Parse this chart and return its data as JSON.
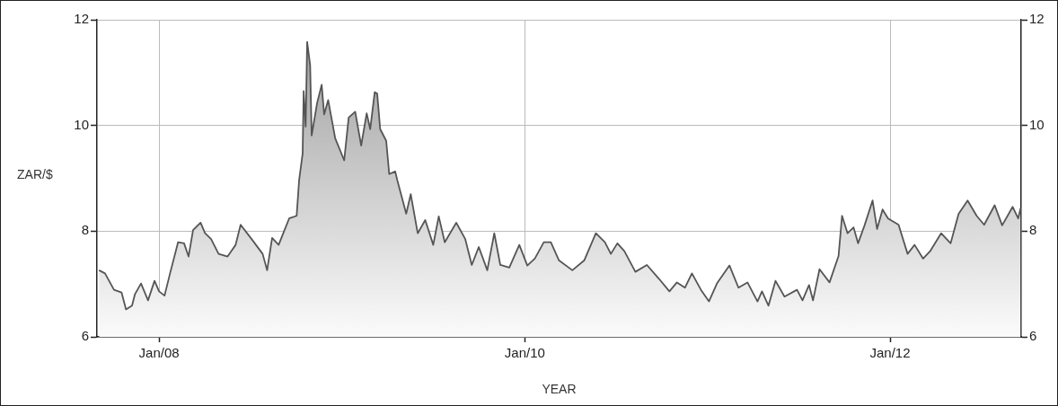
{
  "chart_data": {
    "type": "area",
    "ylabel": "ZAR/$",
    "xlabel": "YEAR",
    "xlim": [
      "2007-08-30",
      "2012-09-19"
    ],
    "xticks": [
      {
        "value": "2008-01-01",
        "label": "Jan/08"
      },
      {
        "value": "2010-01-01",
        "label": "Jan/10"
      },
      {
        "value": "2012-01-01",
        "label": "Jan/12"
      }
    ],
    "ylim": [
      6,
      12
    ],
    "yticks": [
      6,
      8,
      10,
      12
    ],
    "y2lim": [
      6,
      12
    ],
    "y2ticks": [
      6,
      8,
      10,
      12
    ],
    "grid": true,
    "legend": false,
    "marker": "none",
    "line_style": "solid",
    "series": [
      {
        "color": "#555555",
        "x": [
          "2007-09-03",
          "2007-09-15",
          "2007-10-03",
          "2007-10-18",
          "2007-10-27",
          "2007-11-08",
          "2007-11-14",
          "2007-11-26",
          "2007-12-10",
          "2007-12-23",
          "2008-01-01",
          "2008-01-12",
          "2008-01-23",
          "2008-02-08",
          "2008-02-20",
          "2008-02-29",
          "2008-03-09",
          "2008-03-24",
          "2008-04-02",
          "2008-04-14",
          "2008-04-29",
          "2008-05-17",
          "2008-06-02",
          "2008-06-12",
          "2008-07-04",
          "2008-07-26",
          "2008-08-04",
          "2008-08-14",
          "2008-08-27",
          "2008-09-17",
          "2008-10-02",
          "2008-10-07",
          "2008-10-14",
          "2008-10-16",
          "2008-10-20",
          "2008-10-23",
          "2008-10-29",
          "2008-11-01",
          "2008-11-12",
          "2008-11-21",
          "2008-11-26",
          "2008-12-04",
          "2008-12-18",
          "2009-01-05",
          "2009-01-14",
          "2009-01-27",
          "2009-02-08",
          "2009-02-19",
          "2009-02-26",
          "2009-03-07",
          "2009-03-12",
          "2009-03-18",
          "2009-03-30",
          "2009-04-05",
          "2009-04-17",
          "2009-04-21",
          "2009-05-09",
          "2009-05-18",
          "2009-06-01",
          "2009-06-16",
          "2009-07-02",
          "2009-07-13",
          "2009-07-25",
          "2009-08-17",
          "2009-09-04",
          "2009-09-17",
          "2009-10-01",
          "2009-10-18",
          "2009-11-01",
          "2009-11-13",
          "2009-12-01",
          "2009-12-21",
          "2010-01-06",
          "2010-01-21",
          "2010-02-08",
          "2010-02-22",
          "2010-03-10",
          "2010-04-06",
          "2010-04-30",
          "2010-05-23",
          "2010-06-10",
          "2010-06-22",
          "2010-07-05",
          "2010-07-19",
          "2010-08-10",
          "2010-09-02",
          "2010-09-26",
          "2010-10-17",
          "2010-11-01",
          "2010-11-17",
          "2010-12-01",
          "2010-12-19",
          "2011-01-04",
          "2011-01-20",
          "2011-02-14",
          "2011-03-04",
          "2011-03-22",
          "2011-04-11",
          "2011-04-20",
          "2011-05-03",
          "2011-05-17",
          "2011-06-04",
          "2011-06-29",
          "2011-07-10",
          "2011-07-23",
          "2011-07-31",
          "2011-08-13",
          "2011-09-02",
          "2011-09-20",
          "2011-09-27",
          "2011-10-08",
          "2011-10-20",
          "2011-10-29",
          "2011-11-11",
          "2011-11-27",
          "2011-12-06",
          "2011-12-17",
          "2011-12-28",
          "2012-01-18",
          "2012-02-05",
          "2012-02-19",
          "2012-03-07",
          "2012-03-21",
          "2012-04-12",
          "2012-05-01",
          "2012-05-17",
          "2012-06-04",
          "2012-06-22",
          "2012-07-07",
          "2012-07-28",
          "2012-08-12",
          "2012-09-02",
          "2012-09-13",
          "2012-09-18"
        ],
        "values": [
          7.26,
          7.2,
          6.89,
          6.84,
          6.52,
          6.59,
          6.81,
          7.01,
          6.69,
          7.06,
          6.86,
          6.78,
          7.2,
          7.79,
          7.77,
          7.52,
          8.02,
          8.16,
          7.96,
          7.85,
          7.57,
          7.52,
          7.74,
          8.12,
          7.85,
          7.57,
          7.26,
          7.87,
          7.74,
          8.24,
          8.29,
          8.97,
          9.47,
          10.65,
          9.98,
          11.58,
          11.14,
          9.81,
          10.43,
          10.77,
          10.21,
          10.48,
          9.76,
          9.34,
          10.15,
          10.26,
          9.62,
          10.23,
          9.93,
          10.63,
          10.6,
          9.93,
          9.71,
          9.08,
          9.13,
          8.97,
          8.33,
          8.7,
          7.96,
          8.21,
          7.74,
          8.28,
          7.79,
          8.16,
          7.85,
          7.36,
          7.7,
          7.26,
          7.96,
          7.36,
          7.31,
          7.74,
          7.35,
          7.48,
          7.79,
          7.79,
          7.45,
          7.26,
          7.45,
          7.96,
          7.79,
          7.57,
          7.77,
          7.62,
          7.23,
          7.36,
          7.1,
          6.86,
          7.03,
          6.93,
          7.2,
          6.89,
          6.67,
          7.01,
          7.35,
          6.93,
          7.03,
          6.67,
          6.86,
          6.59,
          7.06,
          6.76,
          6.89,
          6.69,
          6.98,
          6.69,
          7.28,
          7.03,
          7.53,
          8.29,
          7.96,
          8.07,
          7.77,
          8.11,
          8.58,
          8.04,
          8.41,
          8.24,
          8.12,
          7.57,
          7.74,
          7.48,
          7.62,
          7.96,
          7.77,
          8.33,
          8.58,
          8.29,
          8.12,
          8.49,
          8.11,
          8.46,
          8.24,
          8.44
        ]
      }
    ]
  }
}
